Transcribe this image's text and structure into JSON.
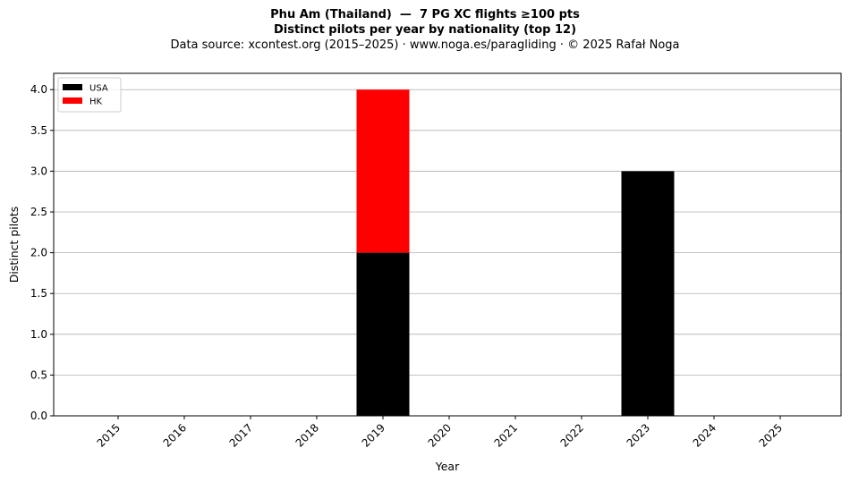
{
  "chart_data": {
    "type": "bar",
    "stacked": true,
    "title": "Phu Am (Thailand)  —  7 PG XC flights ≥100 pts",
    "subtitle": "Distinct pilots per year by nationality (top 12)",
    "source_note": "Data source: xcontest.org (2015–2025)  ·  www.noga.es/paragliding  ·  © 2025 Rafał Noga",
    "xlabel": "Year",
    "ylabel": "Distinct pilots",
    "categories": [
      "2015",
      "2016",
      "2017",
      "2018",
      "2019",
      "2020",
      "2021",
      "2022",
      "2023",
      "2024",
      "2025"
    ],
    "series": [
      {
        "name": "USA",
        "color": "#000000",
        "values": [
          0,
          0,
          0,
          0,
          2,
          0,
          0,
          0,
          3,
          0,
          0
        ]
      },
      {
        "name": "HK",
        "color": "#ff0000",
        "values": [
          0,
          0,
          0,
          0,
          2,
          0,
          0,
          0,
          0,
          0,
          0
        ]
      }
    ],
    "ylim": [
      0,
      4.2
    ],
    "yticks": [
      "0.0",
      "0.5",
      "1.0",
      "1.5",
      "2.0",
      "2.5",
      "3.0",
      "3.5",
      "4.0"
    ],
    "grid": "y",
    "legend_position": "top-left"
  }
}
